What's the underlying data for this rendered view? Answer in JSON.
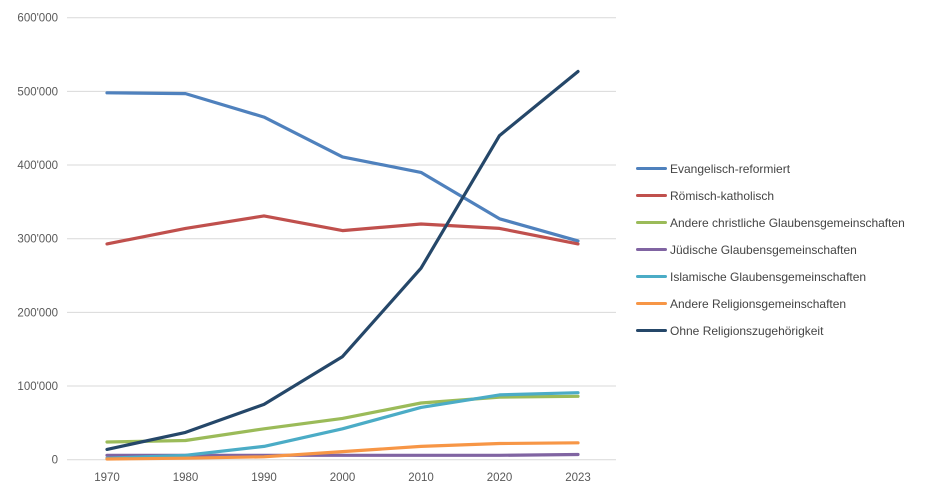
{
  "chart_data": {
    "type": "line",
    "title": "",
    "xlabel": "",
    "ylabel": "",
    "categories": [
      "1970",
      "1980",
      "1990",
      "2000",
      "2010",
      "2020",
      "2023"
    ],
    "series": [
      {
        "name": "Evangelisch-reformiert",
        "color": "#4F81BD",
        "values": [
          498000,
          497000,
          465000,
          411000,
          390000,
          327000,
          297000
        ]
      },
      {
        "name": "Römisch-katholisch",
        "color": "#C0504D",
        "values": [
          293000,
          314000,
          331000,
          311000,
          320000,
          314000,
          293000
        ]
      },
      {
        "name": "Andere christliche Glaubensgemeinschaften",
        "color": "#9BBB59",
        "values": [
          24000,
          26000,
          42000,
          56000,
          77000,
          85000,
          86000
        ]
      },
      {
        "name": "Jüdische Glaubensgemeinschaften",
        "color": "#8064A2",
        "values": [
          6000,
          6000,
          6000,
          6000,
          6000,
          6000,
          7000
        ]
      },
      {
        "name": "Islamische Glaubensgemeinschaften",
        "color": "#4BACC6",
        "values": [
          2000,
          6000,
          18000,
          42000,
          71000,
          88000,
          91000
        ]
      },
      {
        "name": "Andere Religionsgemeinschaften",
        "color": "#F79646",
        "values": [
          1000,
          2000,
          4000,
          11000,
          18000,
          22000,
          23000
        ]
      },
      {
        "name": "Ohne Religionszugehörigkeit",
        "color": "#254769",
        "values": [
          14000,
          37000,
          75000,
          140000,
          260000,
          440000,
          527000
        ]
      }
    ],
    "ylim": [
      0,
      600000
    ],
    "ytick_interval": 100000,
    "ytick_labels": [
      "0",
      "100'000",
      "200'000",
      "300'000",
      "400'000",
      "500'000",
      "600'000"
    ],
    "grid": true,
    "gridline_color": "#D9D9D9",
    "tick_label_color": "#595959",
    "legend_text_color": "#444444",
    "legend_position": "right"
  }
}
